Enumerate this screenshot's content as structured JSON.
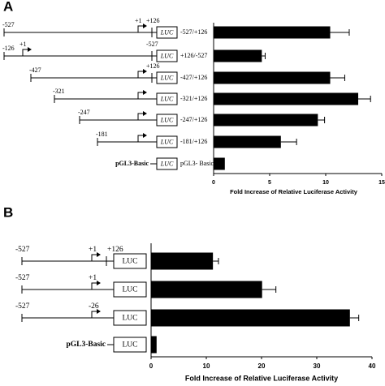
{
  "chart_data": [
    {
      "type": "bar",
      "panel": "A",
      "xlabel": "Fold Increase of Relative Luciferase Activity",
      "categories": [
        "-527/+126",
        "+126/-527",
        "-427/+126",
        "-321/+126",
        "-247/+126",
        "-181/+126",
        "pGL3- Basic"
      ],
      "values": [
        10.4,
        4.3,
        10.4,
        12.9,
        9.3,
        6.0,
        1.0
      ],
      "errors": [
        1.7,
        0.3,
        1.3,
        1.1,
        0.6,
        1.4,
        null
      ],
      "color": "#000000",
      "xlim": [
        0,
        15
      ],
      "xticks": [
        0,
        5,
        10,
        15
      ],
      "reporter": "LUC",
      "constructs": [
        {
          "start": "-527",
          "tss": "+1",
          "end": "+126"
        },
        {
          "start": "-126",
          "tss": "+1",
          "end": "-527"
        },
        {
          "start": "-427",
          "end": "+126"
        },
        {
          "start": "-321"
        },
        {
          "start": "-247"
        },
        {
          "start": "-181"
        },
        {
          "name": "pGL3-Basic"
        }
      ]
    },
    {
      "type": "bar",
      "panel": "B",
      "xlabel": "Fold Increase of Relative Luciferase Activity",
      "values": [
        11.2,
        20.1,
        36.0,
        1.0
      ],
      "errors": [
        1.0,
        2.5,
        1.6,
        null
      ],
      "color": "#000000",
      "xlim": [
        0,
        40
      ],
      "xticks": [
        0,
        10,
        20,
        30,
        40
      ],
      "reporter": "LUC",
      "constructs": [
        {
          "start": "-527",
          "tss": "+1",
          "end": "+126"
        },
        {
          "start": "-527",
          "tss": "+1"
        },
        {
          "start": "-527",
          "tss": "-26"
        },
        {
          "name": "pGL3-Basic"
        }
      ]
    }
  ]
}
